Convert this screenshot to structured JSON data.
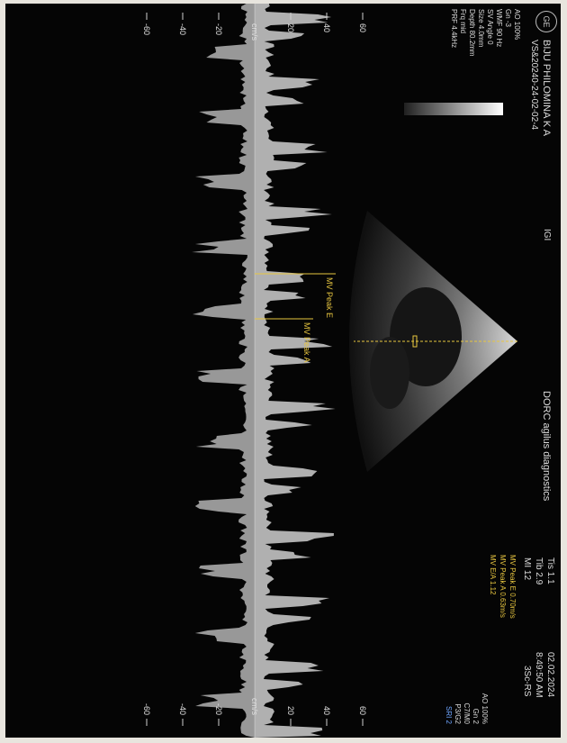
{
  "header": {
    "logo": "GE",
    "patient_name": "BIJU PHILOMINA K A",
    "study_id": "VS&20240-24-02-02-4",
    "probe_label": "IGI",
    "clinic_name": "DORC agilus diagnostics",
    "tis": "Tis 1.1",
    "tib": "Tib 2.9",
    "mi": "MI 12",
    "date": "02.02.2024",
    "time": "8:49:50 AM",
    "probe": "3Sc-RS"
  },
  "left_params": [
    "AO 100%",
    "Gn -3",
    "WMF 90 Hz",
    "SV Angle 0",
    "Size 4.0mm",
    "Depth 80.2mm",
    "Frq mid",
    "PRF 4.4kHz"
  ],
  "measurements": [
    "MV Peak E 0.70m/s",
    "MV Peak A 0.63m/s",
    "MV E/A 1.12"
  ],
  "right_params": [
    "AO 100%",
    "Gn 2",
    "C7/M0",
    "P3/G2",
    "SRI 2"
  ],
  "annotations": {
    "mv_peak_e": "MV Peak E",
    "mv_peak_a": "MV Peak A"
  },
  "scale": {
    "unit": "cm/s",
    "left_ticks": [
      "60",
      "40",
      "20",
      "-20",
      "-40",
      "-60"
    ],
    "right_ticks": [
      "60",
      "40",
      "20",
      "-20",
      "-40",
      "-60"
    ]
  },
  "colors": {
    "background": "#050505",
    "text": "#dcdcdc",
    "measurement": "#e8c640",
    "accent": "#6fa6ff"
  }
}
